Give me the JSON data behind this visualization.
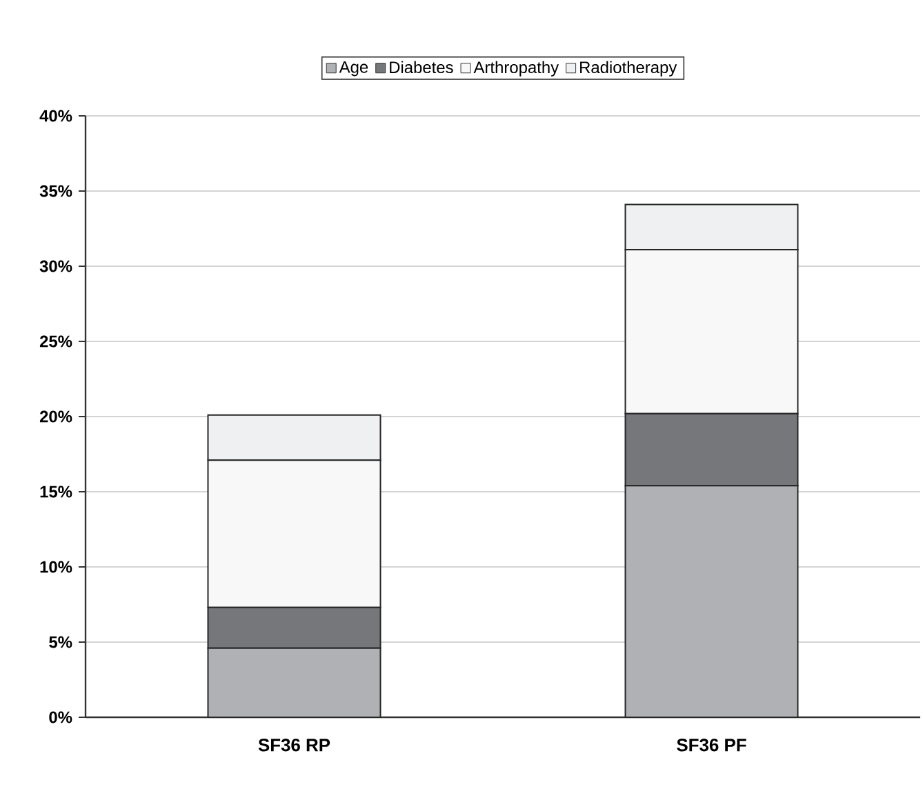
{
  "chart_data": {
    "type": "bar",
    "stacked": true,
    "categories": [
      "SF36 RP",
      "SF36 PF"
    ],
    "series": [
      {
        "name": "Age",
        "color": "#b0b1b4",
        "values": [
          4.6,
          15.4
        ]
      },
      {
        "name": "Diabetes",
        "color": "#76777a",
        "values": [
          2.7,
          4.8
        ]
      },
      {
        "name": "Arthropathy",
        "color": "#f8f8f8",
        "values": [
          9.8,
          10.9
        ]
      },
      {
        "name": "Radiotherapy",
        "color": "#eff0f1",
        "values": [
          3.0,
          3.0
        ]
      }
    ],
    "ylim": [
      0,
      40
    ],
    "yticks": [
      {
        "value": 0,
        "label": "0%"
      },
      {
        "value": 5,
        "label": "5%"
      },
      {
        "value": 10,
        "label": "10%"
      },
      {
        "value": 15,
        "label": "15%"
      },
      {
        "value": 20,
        "label": "20%"
      },
      {
        "value": 25,
        "label": "25%"
      },
      {
        "value": 30,
        "label": "30%"
      },
      {
        "value": 35,
        "label": "35%"
      },
      {
        "value": 40,
        "label": "40%"
      }
    ],
    "grid": "y",
    "legend": "top"
  }
}
